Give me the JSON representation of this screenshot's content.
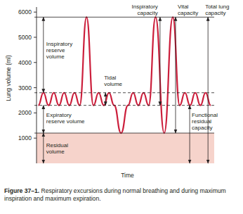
{
  "chart_data": {
    "type": "line",
    "figure_label": "Figure 37–1.",
    "title": "Respiratory excursions during normal breathing and during maximum inspiration and maximum expiration.",
    "y_label": "Lung volume (ml)",
    "x_label": "Time",
    "tick_labels": "y",
    "ylim": [
      0,
      6200
    ],
    "yticks": [
      1000,
      2000,
      3000,
      4000,
      5000,
      6000
    ],
    "xlim": [
      -1,
      102
    ],
    "x": [
      0,
      3,
      6,
      9,
      12,
      15,
      18,
      21,
      24,
      28,
      32,
      35,
      38,
      41,
      44,
      48,
      52,
      55,
      58,
      61,
      64,
      68,
      73,
      78,
      82,
      85,
      88,
      91,
      94,
      97,
      100
    ],
    "series": [
      {
        "color": "#cc1f3c",
        "values": [
          2300,
          2800,
          2300,
          2800,
          2300,
          2800,
          2300,
          2800,
          2300,
          5800,
          2300,
          2800,
          2300,
          2800,
          2300,
          1200,
          2300,
          2800,
          2300,
          2800,
          2300,
          5800,
          1200,
          5800,
          2300,
          2800,
          2300,
          2800,
          2300,
          2800,
          2300
        ]
      }
    ],
    "reference_lines": [
      {
        "value": 5800,
        "line_style": "solid"
      },
      {
        "value": 2800,
        "line_style": "dashed"
      },
      {
        "value": 2300,
        "line_style": "dashed"
      },
      {
        "value": 1200,
        "line_style": "solid"
      }
    ],
    "shaded": {
      "from": 0,
      "to": 1200,
      "color": "#f6d3cb"
    },
    "annotations": [
      {
        "label": "Inspiratory\nreserve\nvolume",
        "x": 3,
        "from": 2800,
        "to": 5800
      },
      {
        "label": "Tidal\nvolume",
        "x": 39,
        "from": 2300,
        "to": 2800
      },
      {
        "label": "Expiratory\nreserve volume",
        "x": 3,
        "from": 1200,
        "to": 2300
      },
      {
        "label": "Residual\nvolume",
        "x": 3,
        "from": 0,
        "to": 1200
      },
      {
        "label": "Inspiratory\ncapacity",
        "x": 70.6,
        "from": 2300,
        "to": 5800
      },
      {
        "label": "Vital\ncapacity",
        "x": 79.6,
        "from": 1200,
        "to": 5800
      },
      {
        "label": "Functional\nresidual\ncapacity",
        "x": 87.8,
        "from": 0,
        "to": 2300
      },
      {
        "label": "Total lung\ncapacity",
        "x": 98.4,
        "from": 0,
        "to": 5800
      }
    ]
  }
}
